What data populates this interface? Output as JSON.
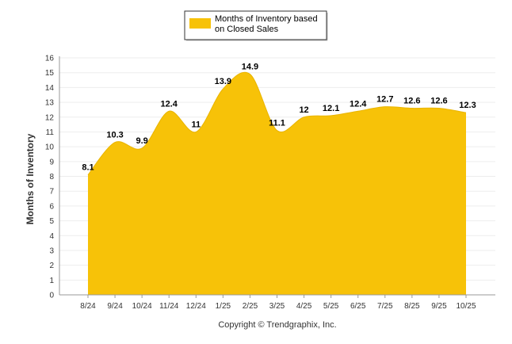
{
  "chart_data": {
    "type": "area",
    "categories": [
      "8/24",
      "9/24",
      "10/24",
      "11/24",
      "12/24",
      "1/25",
      "2/25",
      "3/25",
      "4/25",
      "5/25",
      "6/25",
      "7/25",
      "8/25",
      "9/25",
      "10/25"
    ],
    "series": [
      {
        "name": "Months of Inventory based on Closed Sales",
        "values": [
          8.1,
          10.3,
          9.9,
          12.4,
          11,
          13.9,
          14.9,
          11.1,
          12,
          12.1,
          12.4,
          12.7,
          12.6,
          12.6,
          12.3
        ],
        "color": "#F7C208"
      }
    ],
    "value_labels": [
      "8.1",
      "10.3",
      "9.9",
      "12.4",
      "11",
      "13.9",
      "14.9",
      "11.1",
      "12",
      "12.1",
      "12.4",
      "12.7",
      "12.6",
      "12.6",
      "12.3"
    ],
    "legend_lines": [
      "Months of Inventory based",
      "on Closed Sales"
    ],
    "legend_position": "top-center",
    "ylabel": "Months of Inventory",
    "xlabel": "",
    "ylim": [
      0,
      16
    ],
    "yticks": [
      0,
      1,
      2,
      3,
      4,
      5,
      6,
      7,
      8,
      9,
      10,
      11,
      12,
      13,
      14,
      15,
      16
    ],
    "grid": true,
    "grid_color": "#EDEDED"
  },
  "footer": "Copyright © Trendgraphix, Inc."
}
